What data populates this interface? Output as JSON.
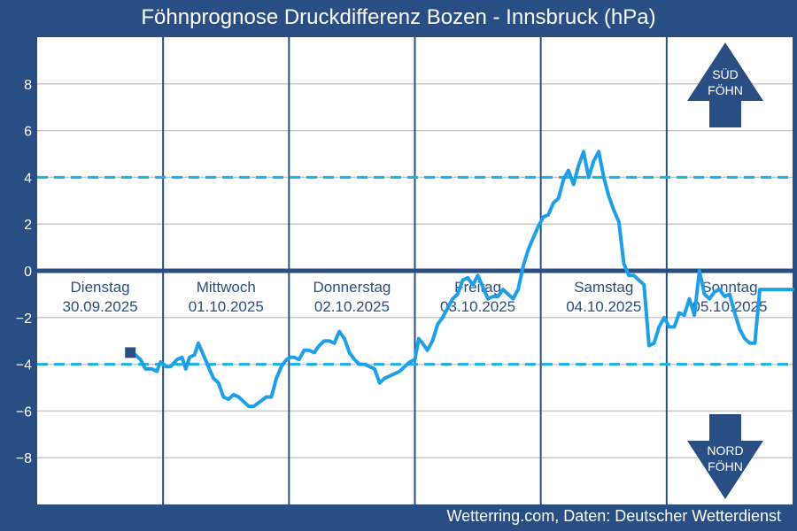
{
  "title": "Föhnprognose Druckdifferenz Bozen - Innsbruck (hPa)",
  "credit": "Wetterring.com, Daten: Deutscher Wetterdienst",
  "colors": {
    "frame": "#284e84",
    "plot_bg": "#ffffff",
    "series": "#1ea0e8",
    "threshold": "#1ab1ea",
    "zero_line": "#284e84",
    "grid": "#c8c8c8",
    "day_label": "#284e84",
    "arrow": "#284e84"
  },
  "arrows": {
    "sued": {
      "line1": "SÜD",
      "line2": "FÖHN",
      "direction": "up"
    },
    "nord": {
      "line1": "NORD",
      "line2": "FÖHN",
      "direction": "down"
    }
  },
  "chart_data": {
    "type": "line",
    "title": "Föhnprognose Druckdifferenz Bozen - Innsbruck (hPa)",
    "xlabel": "",
    "ylabel": "",
    "ylim": [
      -10,
      10
    ],
    "xlim": [
      0,
      6
    ],
    "yticks": [
      -8,
      -6,
      -4,
      -2,
      0,
      2,
      4,
      6,
      8
    ],
    "ytick_labels": [
      "−8",
      "−6",
      "−4",
      "−2",
      "0",
      "2",
      "4",
      "6",
      "8"
    ],
    "grid": true,
    "day_separators": [
      1,
      2,
      3,
      4,
      5
    ],
    "day_labels": [
      {
        "day": "Dienstag",
        "date": "30.09.2025",
        "x": 0.5
      },
      {
        "day": "Mittwoch",
        "date": "01.10.2025",
        "x": 1.5
      },
      {
        "day": "Donnerstag",
        "date": "02.10.2025",
        "x": 2.5
      },
      {
        "day": "Freitag",
        "date": "03.10.2025",
        "x": 3.5
      },
      {
        "day": "Samstag",
        "date": "04.10.2025",
        "x": 4.5
      },
      {
        "day": "Sonntag",
        "date": "05.10.2025",
        "x": 5.5
      }
    ],
    "thresholds": [
      4,
      -4
    ],
    "zero_line": 0,
    "start_marker": {
      "x": 0.74,
      "y": -3.5
    },
    "series": [
      {
        "x": [
          0.74,
          0.78,
          0.82,
          0.86,
          0.91,
          0.95,
          0.98,
          1.02,
          1.06,
          1.11,
          1.15,
          1.18,
          1.21,
          1.25,
          1.28,
          1.32,
          1.36,
          1.4,
          1.44,
          1.48,
          1.52,
          1.56,
          1.6,
          1.64,
          1.68,
          1.72,
          1.77,
          1.82,
          1.86,
          1.9,
          1.94,
          1.98,
          2.01,
          2.04,
          2.08,
          2.12,
          2.16,
          2.2,
          2.24,
          2.28,
          2.32,
          2.36,
          2.4,
          2.44,
          2.48,
          2.52,
          2.56,
          2.6,
          2.64,
          2.68,
          2.72,
          2.76,
          2.8,
          2.84,
          2.88,
          2.92,
          2.96,
          3.0,
          3.03,
          3.06,
          3.1,
          3.14,
          3.18,
          3.22,
          3.26,
          3.3,
          3.34,
          3.38,
          3.42,
          3.46,
          3.5,
          3.54,
          3.58,
          3.62,
          3.66,
          3.7,
          3.74,
          3.78,
          3.82,
          3.86,
          3.9,
          3.94,
          3.98,
          4.02,
          4.06,
          4.1,
          4.14,
          4.18,
          4.22,
          4.26,
          4.3,
          4.34,
          4.38,
          4.42,
          4.46,
          4.5,
          4.54,
          4.58,
          4.62,
          4.66,
          4.7,
          4.74,
          4.78,
          4.82,
          4.86,
          4.9,
          4.94,
          4.98,
          5.02,
          5.06,
          5.1,
          5.14,
          5.18,
          5.22,
          5.26,
          5.3,
          5.34,
          5.38,
          5.42,
          5.46,
          5.5,
          5.54,
          5.58,
          5.62,
          5.66,
          5.7,
          5.74,
          5.78,
          5.82,
          5.86,
          5.9,
          5.94,
          5.98,
          6.0
        ],
        "y": [
          -3.5,
          -3.6,
          -3.8,
          -4.2,
          -4.2,
          -4.3,
          -3.9,
          -4.1,
          -4.1,
          -3.8,
          -3.7,
          -4.2,
          -3.7,
          -3.6,
          -3.1,
          -3.6,
          -4.1,
          -4.6,
          -4.8,
          -5.4,
          -5.5,
          -5.3,
          -5.4,
          -5.6,
          -5.8,
          -5.8,
          -5.6,
          -5.4,
          -5.4,
          -4.6,
          -4.1,
          -3.8,
          -3.7,
          -3.7,
          -3.8,
          -3.4,
          -3.4,
          -3.5,
          -3.2,
          -3.0,
          -3.0,
          -3.1,
          -2.6,
          -2.9,
          -3.5,
          -3.8,
          -4.0,
          -4.0,
          -4.1,
          -4.2,
          -4.8,
          -4.6,
          -4.5,
          -4.4,
          -4.3,
          -4.1,
          -3.9,
          -3.8,
          -2.9,
          -3.1,
          -3.4,
          -3.0,
          -2.3,
          -2.0,
          -1.6,
          -1.2,
          -1.0,
          -0.4,
          -0.3,
          -0.6,
          -0.2,
          -0.7,
          -1.2,
          -1.1,
          -1.1,
          -0.8,
          -1.0,
          -1.2,
          -0.8,
          0.2,
          0.9,
          1.4,
          1.9,
          2.3,
          2.4,
          2.9,
          3.1,
          3.9,
          4.3,
          3.7,
          4.5,
          5.1,
          4.0,
          4.7,
          5.1,
          4.0,
          3.2,
          2.6,
          2.1,
          0.3,
          -0.2,
          -0.2,
          -0.4,
          -0.6,
          -3.2,
          -3.1,
          -2.4,
          -2.0,
          -2.4,
          -2.4,
          -1.8,
          -1.9,
          -1.2,
          -1.9,
          0.0,
          -1.0,
          -1.2,
          -0.9,
          -0.8,
          -1.1,
          -1.0,
          -1.8,
          -2.5,
          -2.9,
          -3.1,
          -3.1,
          -0.8,
          -0.8,
          -0.8,
          -0.8,
          -0.8,
          -0.8,
          -0.8,
          -0.8
        ]
      }
    ]
  }
}
